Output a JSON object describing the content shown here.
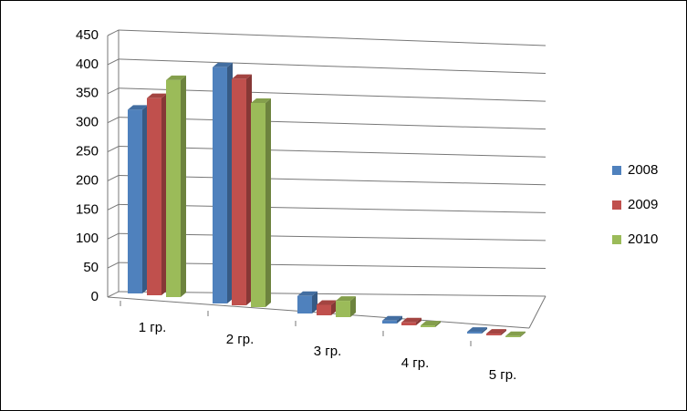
{
  "chart_data": {
    "type": "bar3d",
    "categories": [
      "1 гр.",
      "2 гр.",
      "3 гр.",
      "4 гр.",
      "5 гр."
    ],
    "series": [
      {
        "name": "2008",
        "color": "#4f81bd",
        "values": [
          315,
          405,
          30,
          5,
          3
        ]
      },
      {
        "name": "2009",
        "color": "#c0504d",
        "values": [
          338,
          388,
          18,
          5,
          3
        ]
      },
      {
        "name": "2010",
        "color": "#9bbb59",
        "values": [
          372,
          350,
          28,
          3,
          2
        ]
      }
    ],
    "ylim": [
      0,
      450
    ],
    "yticks": [
      0,
      50,
      100,
      150,
      200,
      250,
      300,
      350,
      400,
      450
    ],
    "grid": true
  }
}
